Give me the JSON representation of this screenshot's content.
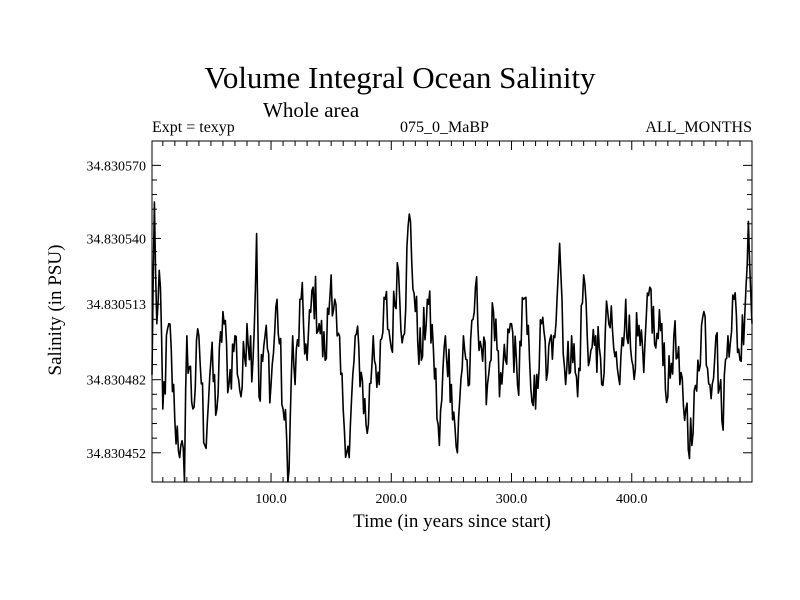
{
  "chart_data": {
    "type": "line",
    "title": "Volume Integral Ocean Salinity",
    "subtitle": "Whole area",
    "info": {
      "left": "Expt = texyp",
      "center": "075_0_MaBP",
      "right": "ALL_MONTHS"
    },
    "xlabel": "Time (in years since start)",
    "ylabel": "Salinity (in PSU)",
    "xlim": [
      1,
      500
    ],
    "ylim": [
      34.83044,
      34.83058
    ],
    "x_ticks": [
      100,
      200,
      300,
      400
    ],
    "x_tick_labels": [
      "100.0",
      "200.0",
      "300.0",
      "400.0"
    ],
    "y_ticks": [
      34.830452,
      34.830482,
      34.830513,
      34.83054,
      34.83057
    ],
    "y_tick_labels": [
      "34.830452",
      "34.830482",
      "34.830513",
      "34.830540",
      "34.830570"
    ],
    "key_points": [
      [
        1,
        34.830484
      ],
      [
        3,
        34.830555
      ],
      [
        5,
        34.830505
      ],
      [
        8,
        34.83052
      ],
      [
        10,
        34.83047
      ],
      [
        15,
        34.830505
      ],
      [
        20,
        34.830465
      ],
      [
        25,
        34.830455
      ],
      [
        28,
        34.83044
      ],
      [
        30,
        34.8305
      ],
      [
        35,
        34.83047
      ],
      [
        40,
        34.8305
      ],
      [
        45,
        34.830455
      ],
      [
        50,
        34.83049
      ],
      [
        55,
        34.83047
      ],
      [
        60,
        34.83051
      ],
      [
        65,
        34.83048
      ],
      [
        70,
        34.8305
      ],
      [
        75,
        34.830475
      ],
      [
        80,
        34.830505
      ],
      [
        85,
        34.83049
      ],
      [
        88,
        34.830542
      ],
      [
        90,
        34.830475
      ],
      [
        95,
        34.8305
      ],
      [
        100,
        34.83048
      ],
      [
        105,
        34.830515
      ],
      [
        110,
        34.83047
      ],
      [
        115,
        34.830445
      ],
      [
        118,
        34.8305
      ],
      [
        120,
        34.83048
      ],
      [
        125,
        34.830515
      ],
      [
        130,
        34.83049
      ],
      [
        135,
        34.83052
      ],
      [
        140,
        34.830505
      ],
      [
        145,
        34.83049
      ],
      [
        150,
        34.830525
      ],
      [
        155,
        34.8305
      ],
      [
        160,
        34.83047
      ],
      [
        165,
        34.83045
      ],
      [
        170,
        34.8305
      ],
      [
        175,
        34.830485
      ],
      [
        180,
        34.83046
      ],
      [
        185,
        34.8305
      ],
      [
        190,
        34.83048
      ],
      [
        195,
        34.830515
      ],
      [
        200,
        34.830495
      ],
      [
        205,
        34.83053
      ],
      [
        210,
        34.8305
      ],
      [
        215,
        34.83055
      ],
      [
        220,
        34.83051
      ],
      [
        225,
        34.83049
      ],
      [
        230,
        34.830515
      ],
      [
        235,
        34.830495
      ],
      [
        240,
        34.830455
      ],
      [
        245,
        34.8305
      ],
      [
        250,
        34.83048
      ],
      [
        255,
        34.830452
      ],
      [
        260,
        34.8305
      ],
      [
        265,
        34.83048
      ],
      [
        270,
        34.83052
      ],
      [
        275,
        34.830495
      ],
      [
        280,
        34.83048
      ],
      [
        285,
        34.83051
      ],
      [
        290,
        34.830475
      ],
      [
        295,
        34.83049
      ],
      [
        300,
        34.830505
      ],
      [
        305,
        34.83048
      ],
      [
        310,
        34.830515
      ],
      [
        315,
        34.83049
      ],
      [
        320,
        34.83047
      ],
      [
        325,
        34.830505
      ],
      [
        330,
        34.830485
      ],
      [
        335,
        34.8305
      ],
      [
        340,
        34.830538
      ],
      [
        345,
        34.83048
      ],
      [
        350,
        34.8305
      ],
      [
        355,
        34.830475
      ],
      [
        360,
        34.830525
      ],
      [
        365,
        34.83049
      ],
      [
        370,
        34.8305
      ],
      [
        375,
        34.83048
      ],
      [
        380,
        34.83051
      ],
      [
        385,
        34.830495
      ],
      [
        390,
        34.83048
      ],
      [
        395,
        34.830515
      ],
      [
        400,
        34.83049
      ],
      [
        405,
        34.8305
      ],
      [
        410,
        34.830485
      ],
      [
        415,
        34.83052
      ],
      [
        420,
        34.830495
      ],
      [
        425,
        34.830505
      ],
      [
        430,
        34.830475
      ],
      [
        435,
        34.8305
      ],
      [
        440,
        34.83048
      ],
      [
        445,
        34.83047
      ],
      [
        450,
        34.830455
      ],
      [
        455,
        34.83049
      ],
      [
        460,
        34.83051
      ],
      [
        465,
        34.83048
      ],
      [
        470,
        34.8305
      ],
      [
        475,
        34.830465
      ],
      [
        480,
        34.8305
      ],
      [
        485,
        34.830515
      ],
      [
        490,
        34.83049
      ],
      [
        495,
        34.83052
      ],
      [
        497,
        34.830547
      ],
      [
        500,
        34.830505
      ]
    ],
    "grid": false,
    "line_color": "#000000"
  }
}
